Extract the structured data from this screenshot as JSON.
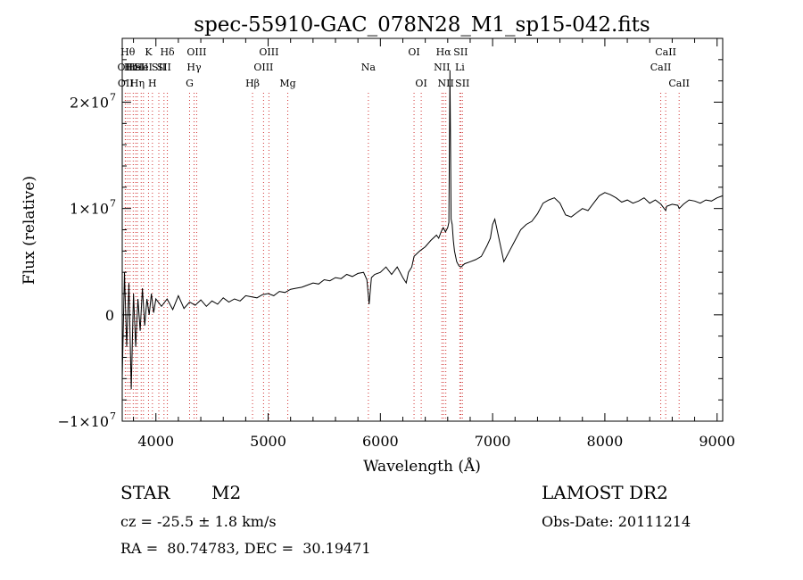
{
  "chart_data": {
    "type": "line",
    "title": "spec-55910-GAC_078N28_M1_sp15-042.fits",
    "xlabel": "Wavelength (Å)",
    "ylabel": "Flux (relative)",
    "xlim": [
      3700,
      9050
    ],
    "ylim": [
      -10000000,
      26000000
    ],
    "x_ticks": [
      {
        "value": 4000,
        "label": "4000"
      },
      {
        "value": 5000,
        "label": "5000"
      },
      {
        "value": 6000,
        "label": "6000"
      },
      {
        "value": 7000,
        "label": "7000"
      },
      {
        "value": 8000,
        "label": "8000"
      },
      {
        "value": 9000,
        "label": "9000"
      }
    ],
    "y_ticks": [
      {
        "value": -10000000,
        "label": "−1×10",
        "exp": "7"
      },
      {
        "value": 0,
        "label": "0",
        "exp": ""
      },
      {
        "value": 10000000,
        "label": "1×10",
        "exp": "7"
      },
      {
        "value": 20000000,
        "label": "2×10",
        "exp": "7"
      }
    ],
    "grid": false,
    "series": [
      {
        "x": [
          3700,
          3720,
          3740,
          3760,
          3780,
          3800,
          3820,
          3840,
          3860,
          3880,
          3900,
          3920,
          3940,
          3960,
          3980,
          4000,
          4050,
          4100,
          4150,
          4200,
          4250,
          4300,
          4350,
          4400,
          4450,
          4500,
          4550,
          4600,
          4650,
          4700,
          4750,
          4800,
          4850,
          4900,
          4950,
          5000,
          5050,
          5100,
          5150,
          5200,
          5250,
          5300,
          5350,
          5400,
          5450,
          5500,
          5550,
          5600,
          5650,
          5700,
          5750,
          5800,
          5850,
          5880,
          5900,
          5920,
          5950,
          6000,
          6050,
          6100,
          6150,
          6200,
          6230,
          6250,
          6280,
          6300,
          6350,
          6400,
          6450,
          6500,
          6520,
          6540,
          6560,
          6580,
          6600,
          6610,
          6620,
          6630,
          6640,
          6650,
          6660,
          6680,
          6700,
          6720,
          6750,
          6800,
          6850,
          6900,
          6950,
          6980,
          7000,
          7020,
          7050,
          7080,
          7100,
          7150,
          7200,
          7250,
          7300,
          7350,
          7400,
          7450,
          7500,
          7550,
          7600,
          7650,
          7700,
          7750,
          7800,
          7850,
          7900,
          7950,
          8000,
          8050,
          8100,
          8150,
          8200,
          8250,
          8300,
          8350,
          8400,
          8450,
          8500,
          8542,
          8550,
          8600,
          8650,
          8662,
          8700,
          8750,
          8800,
          8850,
          8900,
          8950,
          9000,
          9050
        ],
        "y": [
          -6000000,
          4000000,
          -3000000,
          3000000,
          -7000000,
          2000000,
          -3000000,
          1500000,
          -1500000,
          2500000,
          -1000000,
          1500000,
          0,
          2000000,
          200000,
          1500000,
          800000,
          1500000,
          500000,
          1800000,
          600000,
          1200000,
          900000,
          1400000,
          800000,
          1300000,
          1000000,
          1600000,
          1200000,
          1500000,
          1300000,
          1800000,
          1700000,
          1600000,
          1900000,
          2000000,
          1800000,
          2200000,
          2100000,
          2400000,
          2500000,
          2600000,
          2800000,
          3000000,
          2900000,
          3300000,
          3200000,
          3500000,
          3400000,
          3800000,
          3600000,
          3900000,
          4000000,
          3300000,
          1000000,
          3500000,
          3800000,
          4000000,
          4500000,
          3800000,
          4500000,
          3500000,
          3000000,
          4000000,
          4500000,
          5500000,
          6000000,
          6400000,
          7000000,
          7500000,
          7200000,
          7800000,
          8200000,
          7800000,
          8200000,
          8700000,
          23000000,
          9000000,
          8500000,
          7000000,
          6000000,
          5000000,
          4600000,
          4500000,
          4800000,
          5000000,
          5200000,
          5500000,
          6500000,
          7200000,
          8500000,
          9000000,
          7500000,
          6000000,
          5000000,
          6000000,
          7000000,
          8000000,
          8500000,
          8800000,
          9500000,
          10500000,
          10800000,
          11000000,
          10500000,
          9400000,
          9200000,
          9600000,
          10000000,
          9800000,
          10500000,
          11200000,
          11500000,
          11300000,
          11000000,
          10600000,
          10800000,
          10500000,
          10700000,
          11000000,
          10500000,
          10800000,
          10400000,
          9800000,
          10200000,
          10400000,
          10300000,
          10000000,
          10400000,
          10800000,
          10700000,
          10500000,
          10800000,
          10700000,
          11000000,
          11200000
        ]
      }
    ],
    "lines": [
      {
        "wave": 3727,
        "row": 1,
        "label": "OII"
      },
      {
        "wave": 3730,
        "row": 2,
        "label": "OII"
      },
      {
        "wave": 3750,
        "row": 0,
        "label": "Hθ"
      },
      {
        "wave": 3770,
        "row": 1,
        "label": "Hι"
      },
      {
        "wave": 3798,
        "row": 1,
        "label": ""
      },
      {
        "wave": 3820,
        "row": 1,
        "label": "HeI"
      },
      {
        "wave": 3835,
        "row": 2,
        "label": "Hη"
      },
      {
        "wave": 3869,
        "row": 1,
        "label": "SII"
      },
      {
        "wave": 3889,
        "row": 1,
        "label": "HeI"
      },
      {
        "wave": 3934,
        "row": 0,
        "label": "K"
      },
      {
        "wave": 3969,
        "row": 2,
        "label": "H"
      },
      {
        "wave": 4026,
        "row": 1,
        "label": "SII"
      },
      {
        "wave": 4072,
        "row": 1,
        "label": "SII"
      },
      {
        "wave": 4102,
        "row": 0,
        "label": "Hδ"
      },
      {
        "wave": 4300,
        "row": 2,
        "label": "G"
      },
      {
        "wave": 4340,
        "row": 1,
        "label": "Hγ"
      },
      {
        "wave": 4363,
        "row": 0,
        "label": "OIII"
      },
      {
        "wave": 4861,
        "row": 2,
        "label": "Hβ"
      },
      {
        "wave": 4959,
        "row": 1,
        "label": "OIII"
      },
      {
        "wave": 5007,
        "row": 0,
        "label": "OIII"
      },
      {
        "wave": 5175,
        "row": 2,
        "label": "Mg"
      },
      {
        "wave": 5893,
        "row": 1,
        "label": "Na"
      },
      {
        "wave": 6300,
        "row": 0,
        "label": "OI"
      },
      {
        "wave": 6364,
        "row": 2,
        "label": "OI"
      },
      {
        "wave": 6548,
        "row": 1,
        "label": "NII"
      },
      {
        "wave": 6563,
        "row": 0,
        "label": "Hα"
      },
      {
        "wave": 6583,
        "row": 2,
        "label": "NII"
      },
      {
        "wave": 6708,
        "row": 1,
        "label": "Li"
      },
      {
        "wave": 6716,
        "row": 0,
        "label": "SII"
      },
      {
        "wave": 6731,
        "row": 2,
        "label": "SII"
      },
      {
        "wave": 8498,
        "row": 1,
        "label": "CaII"
      },
      {
        "wave": 8542,
        "row": 0,
        "label": "CaII"
      },
      {
        "wave": 8662,
        "row": 2,
        "label": "CaII"
      }
    ]
  },
  "info": {
    "class": "STAR",
    "subclass": "M2",
    "survey": "LAMOST DR2",
    "redshift": "cz = -25.5 ± 1.8 km/s",
    "obs_date": "Obs-Date: 20111214",
    "coords": "RA =  80.74783, DEC =  30.19471"
  }
}
